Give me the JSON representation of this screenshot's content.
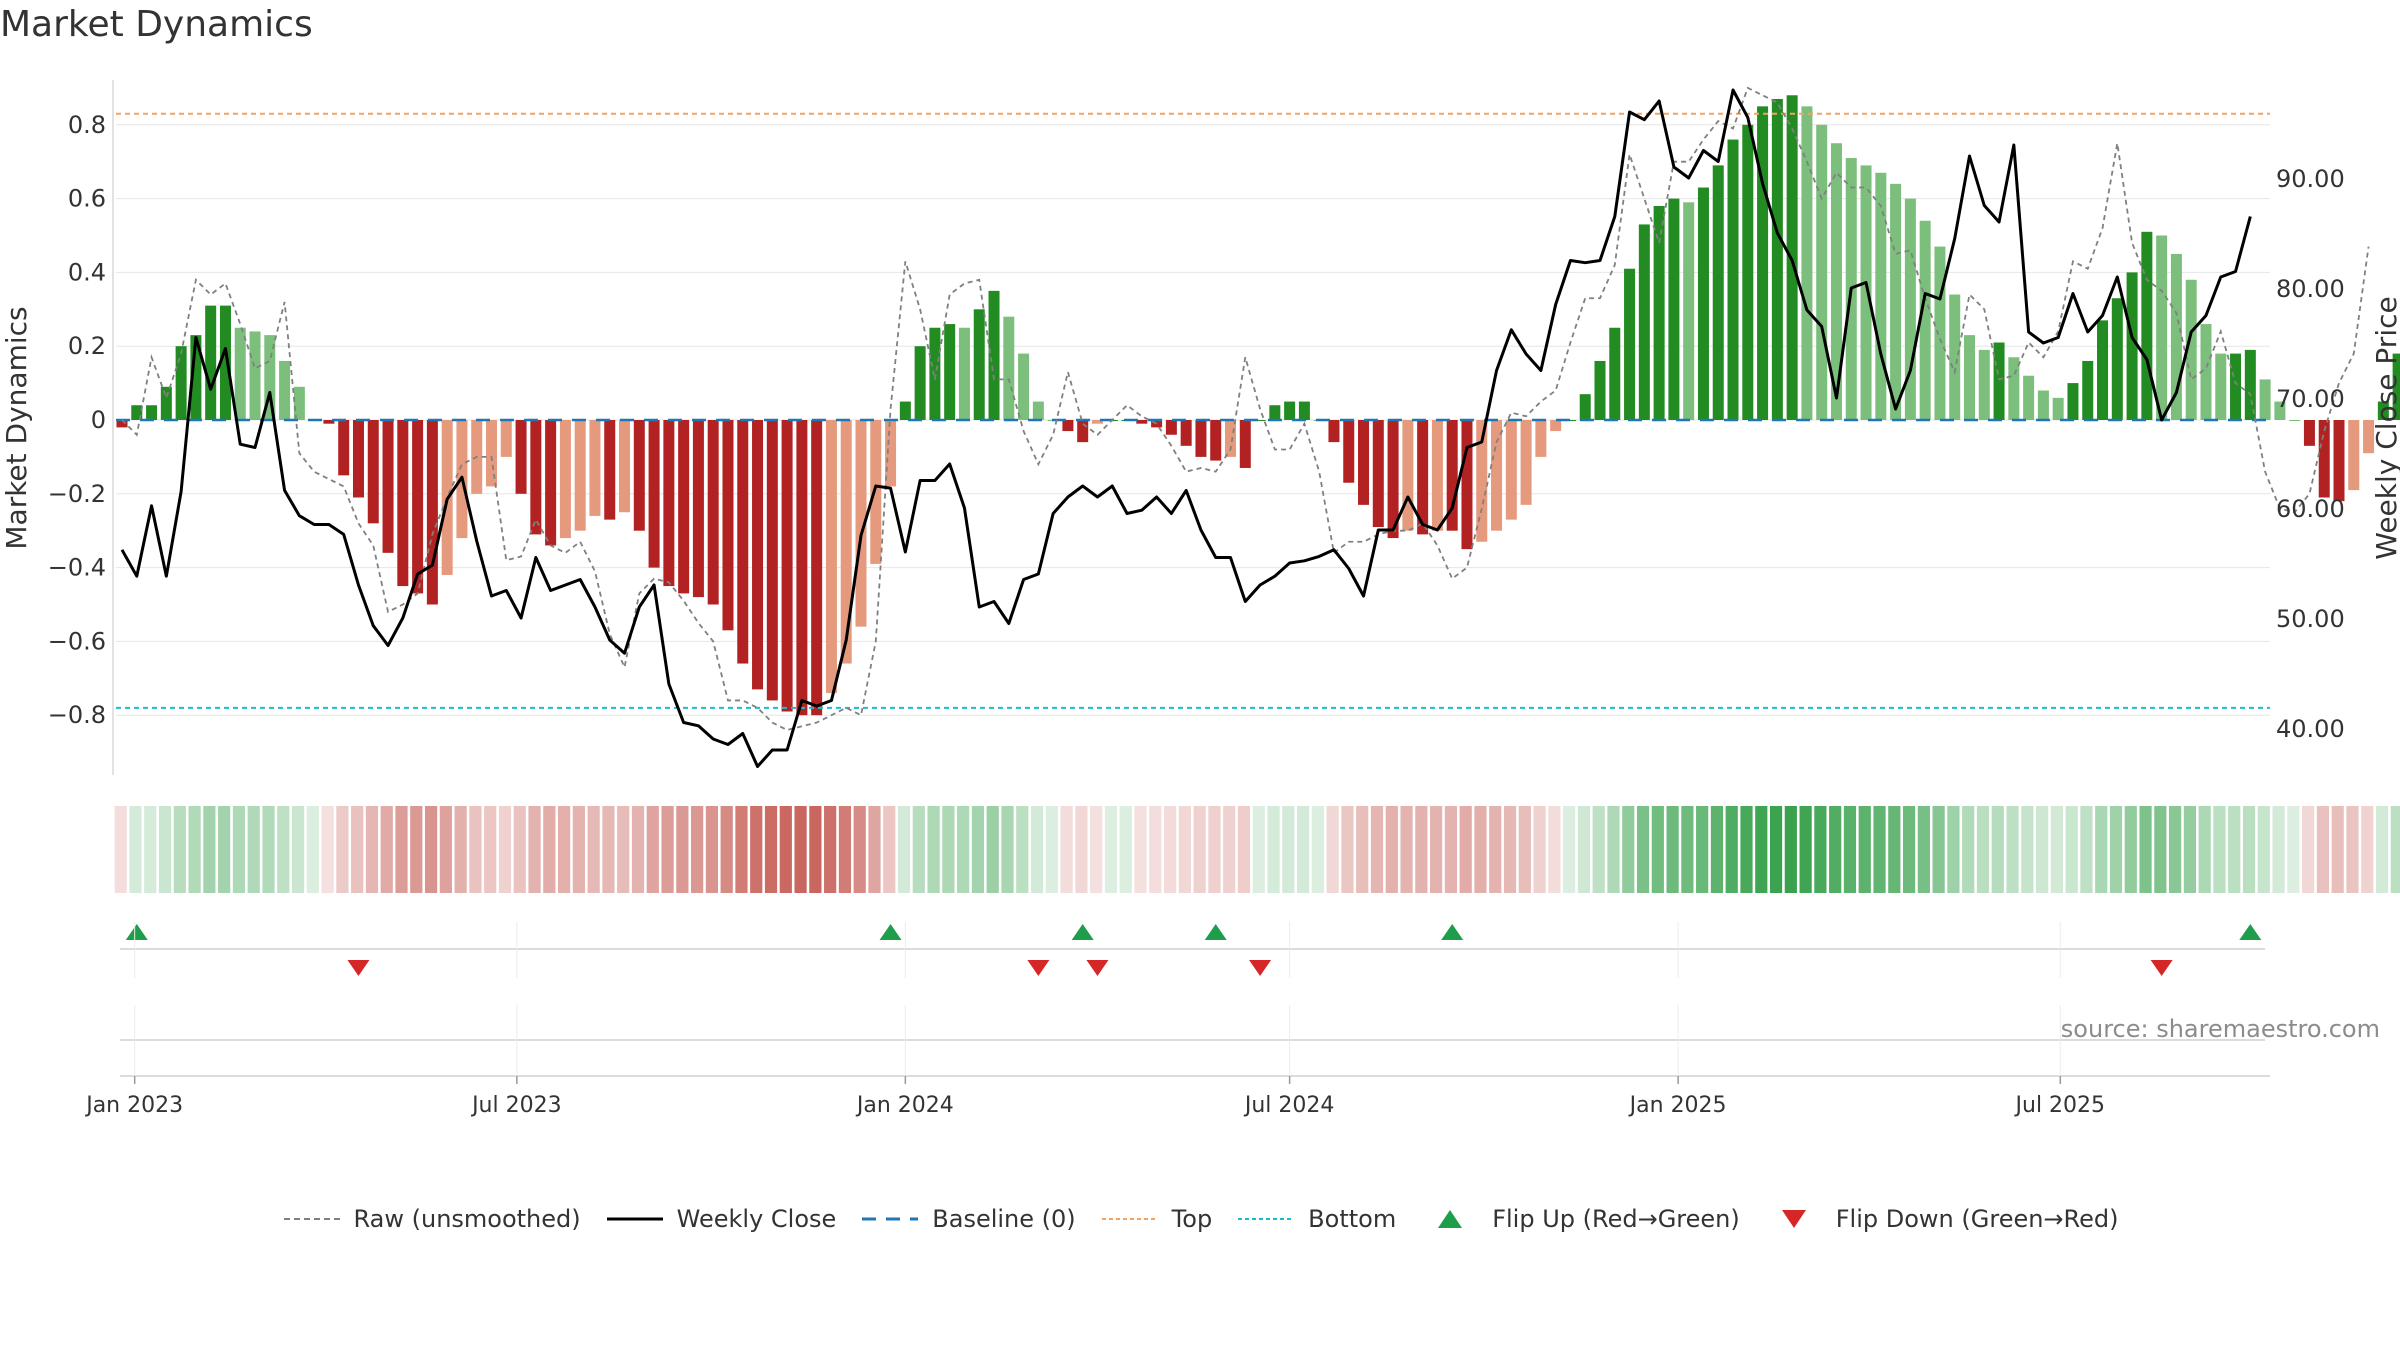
{
  "title": "Market Dynamics",
  "source": "source: sharemaestro.com",
  "colors": {
    "strong_green": "#228b22",
    "light_green": "#7cbf7c",
    "strong_red": "#b22222",
    "light_red": "#e59a7e",
    "baseline": "#1f77b4",
    "top": "#f4a460",
    "bottom": "#17becf",
    "raw": "#808080",
    "close": "#000000",
    "flip_up": "#1e9e4a",
    "flip_down": "#d62728"
  },
  "legend": [
    {
      "id": "raw",
      "label": "Raw (unsmoothed)"
    },
    {
      "id": "close",
      "label": "Weekly Close"
    },
    {
      "id": "baseline",
      "label": "Baseline (0)"
    },
    {
      "id": "top",
      "label": "Top"
    },
    {
      "id": "bottom",
      "label": "Bottom"
    },
    {
      "id": "flipup",
      "label": "Flip Up (Red→Green)"
    },
    {
      "id": "flipdown",
      "label": "Flip Down (Green→Red)"
    }
  ],
  "chart_data": {
    "type": "bar",
    "ylabel": "Market Dynamics",
    "y2label": "Weekly Close Price",
    "ylim": [
      -0.95,
      0.95
    ],
    "y2lim": [
      35.2,
      101.4
    ],
    "yticks": [
      -0.8,
      -0.6,
      -0.4,
      -0.2,
      0,
      0.2,
      0.4,
      0.6,
      0.8
    ],
    "ytick_labels": [
      "−0.8",
      "−0.6",
      "−0.4",
      "−0.2",
      "0",
      "0.2",
      "0.4",
      "0.6",
      "0.8"
    ],
    "y2ticks": [
      40,
      50,
      60,
      70,
      80,
      90
    ],
    "y2tick_labels": [
      "40.00",
      "50.00",
      "60.00",
      "70.00",
      "80.00",
      "90.00"
    ],
    "x_start": "2022-12-26",
    "x_step_days": 7,
    "xticks": [
      {
        "date": "2023-01-01",
        "label": "Jan 2023"
      },
      {
        "date": "2023-07-01",
        "label": "Jul 2023"
      },
      {
        "date": "2024-01-01",
        "label": "Jan 2024"
      },
      {
        "date": "2024-07-01",
        "label": "Jul 2024"
      },
      {
        "date": "2025-01-01",
        "label": "Jan 2025"
      },
      {
        "date": "2025-07-01",
        "label": "Jul 2025"
      }
    ],
    "top": 0.83,
    "bottom": -0.78,
    "baseline": 0,
    "grid": true,
    "legend_position": "bottom",
    "series": [
      {
        "name": "Market Dynamics",
        "values": [
          -0.02,
          0.04,
          0.04,
          0.09,
          0.2,
          0.23,
          0.31,
          0.31,
          0.25,
          0.24,
          0.23,
          0.16,
          0.09,
          0.0,
          -0.01,
          -0.15,
          -0.21,
          -0.28,
          -0.36,
          -0.45,
          -0.47,
          -0.5,
          -0.42,
          -0.32,
          -0.2,
          -0.18,
          -0.1,
          -0.2,
          -0.31,
          -0.34,
          -0.32,
          -0.3,
          -0.26,
          -0.27,
          -0.25,
          -0.3,
          -0.4,
          -0.45,
          -0.47,
          -0.48,
          -0.5,
          -0.57,
          -0.66,
          -0.73,
          -0.76,
          -0.79,
          -0.8,
          -0.8,
          -0.74,
          -0.66,
          -0.56,
          -0.39,
          -0.18,
          0.05,
          0.2,
          0.25,
          0.26,
          0.25,
          0.3,
          0.35,
          0.28,
          0.18,
          0.05,
          0.0,
          -0.03,
          -0.06,
          -0.01,
          0.0,
          0.0,
          -0.01,
          -0.02,
          -0.04,
          -0.07,
          -0.1,
          -0.11,
          -0.1,
          -0.13,
          0.0,
          0.04,
          0.05,
          0.05,
          0.0,
          -0.06,
          -0.17,
          -0.23,
          -0.29,
          -0.32,
          -0.3,
          -0.31,
          -0.3,
          -0.3,
          -0.35,
          -0.33,
          -0.3,
          -0.27,
          -0.23,
          -0.1,
          -0.03,
          0.0,
          0.07,
          0.16,
          0.25,
          0.41,
          0.53,
          0.58,
          0.6,
          0.59,
          0.63,
          0.69,
          0.76,
          0.8,
          0.85,
          0.87,
          0.88,
          0.85,
          0.8,
          0.75,
          0.71,
          0.69,
          0.67,
          0.64,
          0.6,
          0.54,
          0.47,
          0.34,
          0.23,
          0.19,
          0.21,
          0.17,
          0.12,
          0.08,
          0.06,
          0.1,
          0.16,
          0.27,
          0.33,
          0.4,
          0.51,
          0.5,
          0.45,
          0.38,
          0.26,
          0.18,
          0.18,
          0.19,
          0.11,
          0.05,
          0.0,
          -0.07,
          -0.21,
          -0.22,
          -0.19,
          -0.09,
          0.05,
          0.18
        ]
      },
      {
        "name": "Raw (unsmoothed)",
        "values": [
          0.0,
          -0.04,
          0.17,
          0.06,
          0.18,
          0.38,
          0.34,
          0.37,
          0.26,
          0.14,
          0.16,
          0.32,
          -0.09,
          -0.14,
          -0.16,
          -0.18,
          -0.28,
          -0.34,
          -0.52,
          -0.5,
          -0.47,
          -0.31,
          -0.21,
          -0.12,
          -0.1,
          -0.1,
          -0.38,
          -0.37,
          -0.27,
          -0.34,
          -0.36,
          -0.33,
          -0.41,
          -0.58,
          -0.67,
          -0.47,
          -0.43,
          -0.44,
          -0.49,
          -0.55,
          -0.6,
          -0.76,
          -0.76,
          -0.78,
          -0.82,
          -0.84,
          -0.83,
          -0.82,
          -0.8,
          -0.78,
          -0.8,
          -0.6,
          0.03,
          0.43,
          0.3,
          0.11,
          0.34,
          0.37,
          0.38,
          0.11,
          0.11,
          -0.03,
          -0.12,
          -0.04,
          0.13,
          -0.01,
          -0.04,
          0.0,
          0.04,
          0.01,
          -0.01,
          -0.07,
          -0.14,
          -0.13,
          -0.14,
          -0.08,
          0.17,
          0.03,
          -0.08,
          -0.08,
          -0.01,
          -0.14,
          -0.36,
          -0.33,
          -0.33,
          -0.31,
          -0.3,
          -0.3,
          -0.28,
          -0.34,
          -0.43,
          -0.4,
          -0.24,
          -0.06,
          0.02,
          0.01,
          0.05,
          0.08,
          0.21,
          0.33,
          0.33,
          0.42,
          0.72,
          0.6,
          0.48,
          0.7,
          0.7,
          0.76,
          0.81,
          0.79,
          0.9,
          0.88,
          0.86,
          0.79,
          0.7,
          0.6,
          0.67,
          0.63,
          0.63,
          0.58,
          0.45,
          0.46,
          0.33,
          0.22,
          0.13,
          0.34,
          0.3,
          0.11,
          0.12,
          0.21,
          0.17,
          0.24,
          0.43,
          0.41,
          0.52,
          0.75,
          0.48,
          0.38,
          0.35,
          0.29,
          0.11,
          0.14,
          0.24,
          0.1,
          0.07,
          -0.14,
          -0.24,
          -0.25,
          -0.2,
          -0.03,
          0.1,
          0.18,
          0.47
        ]
      },
      {
        "name": "Weekly Close",
        "values": [
          56.2,
          53.8,
          60.2,
          53.8,
          61.5,
          75.5,
          70.8,
          74.5,
          65.8,
          65.5,
          70.5,
          61.6,
          59.3,
          58.5,
          58.5,
          57.6,
          53.0,
          49.3,
          47.5,
          50.0,
          54.0,
          54.8,
          60.8,
          62.8,
          57.0,
          52.0,
          52.5,
          50.0,
          55.5,
          52.5,
          53.0,
          53.5,
          51.0,
          48.0,
          46.8,
          51.0,
          53.0,
          44.0,
          40.5,
          40.2,
          39.0,
          38.5,
          39.5,
          36.5,
          38.0,
          38.0,
          42.5,
          42.0,
          42.5,
          48.0,
          57.5,
          62.0,
          61.8,
          56.0,
          62.5,
          62.5,
          64.0,
          60.0,
          51.0,
          51.5,
          49.5,
          53.5,
          54.0,
          59.5,
          61.0,
          62.0,
          61.0,
          62.0,
          59.5,
          59.8,
          61.0,
          59.5,
          61.6,
          58.0,
          55.5,
          55.5,
          51.5,
          53.0,
          53.8,
          55.0,
          55.2,
          55.6,
          56.2,
          54.5,
          52.0,
          58.0,
          58.0,
          61.0,
          58.5,
          58.0,
          60.0,
          65.5,
          66.0,
          72.5,
          76.2,
          74.0,
          72.5,
          78.5,
          82.5,
          82.3,
          82.5,
          86.5,
          96.0,
          95.3,
          97.0,
          91.0,
          90.0,
          92.5,
          91.5,
          98.0,
          95.5,
          89.5,
          85.0,
          82.5,
          78.0,
          76.5,
          70.0,
          80.0,
          80.5,
          74.0,
          69.0,
          72.5,
          79.5,
          79.0,
          84.5,
          92.0,
          87.5,
          86.0,
          93.0,
          76.0,
          75.0,
          75.5,
          79.5,
          76.0,
          77.5,
          81.0,
          75.5,
          73.5,
          68.0,
          70.5,
          76.0,
          77.5,
          81.0,
          81.5,
          86.5
        ]
      }
    ],
    "flip_up": [
      "2023-01-02",
      "2023-12-25",
      "2024-03-25",
      "2024-05-27",
      "2024-09-16",
      "2025-09-29"
    ],
    "flip_down": [
      "2023-04-17",
      "2024-03-04",
      "2024-04-01",
      "2024-06-17",
      "2025-08-18"
    ]
  }
}
